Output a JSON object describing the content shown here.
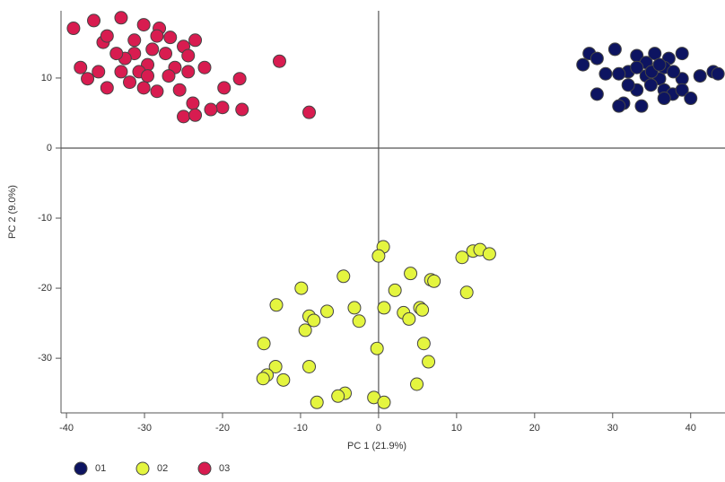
{
  "chart_data": {
    "type": "scatter",
    "xlabel": "PC 1 (21.9%)",
    "ylabel": "PC 2 (9.0%)",
    "xlim": [
      -40.7,
      44.4
    ],
    "ylim": [
      -37.8,
      19.6
    ],
    "xticks": [
      -40,
      -30,
      -20,
      -10,
      0,
      10,
      20,
      30,
      40
    ],
    "yticks": [
      -30,
      -20,
      -10,
      0,
      10
    ],
    "legend": "bottom-left",
    "series": [
      {
        "name": "01",
        "color": "#0d1461",
        "x": [
          27.0,
          30.3,
          28.0,
          26.2,
          33.1,
          34.3,
          35.4,
          37.2,
          38.9,
          36.6,
          32.0,
          30.8,
          29.1,
          34.3,
          36.0,
          38.9,
          41.2,
          42.9,
          43.5,
          28.0,
          31.4,
          33.1,
          34.9,
          36.6,
          37.7,
          38.9,
          40.0,
          30.8,
          33.7,
          36.6,
          35.0,
          37.8,
          33.1,
          32.0,
          36.0
        ],
        "y": [
          13.5,
          14.1,
          12.8,
          11.9,
          13.2,
          12.2,
          13.5,
          12.8,
          13.5,
          11.5,
          10.9,
          10.6,
          10.6,
          10.3,
          9.9,
          9.9,
          10.3,
          10.9,
          10.6,
          7.7,
          6.4,
          8.3,
          9.0,
          8.3,
          7.7,
          8.3,
          7.1,
          6.0,
          6.0,
          7.1,
          10.9,
          10.9,
          11.5,
          9.0,
          11.9
        ]
      },
      {
        "name": "02",
        "color": "#e4f53f",
        "x": [
          0.6,
          0,
          12.1,
          13.0,
          14.2,
          10.7,
          -4.5,
          4.1,
          6.7,
          7.1,
          2.1,
          11.3,
          -9.9,
          -13.1,
          -6.6,
          -8.9,
          -8.3,
          -3.1,
          0.7,
          3.2,
          3.9,
          5.3,
          5.6,
          -2.5,
          -9.4,
          -14.7,
          5.8,
          -0.2,
          6.4,
          -13.2,
          -8.9,
          -14.3,
          -14.8,
          -12.2,
          4.9,
          -4.3,
          -5.2,
          -0.6,
          0.7,
          -7.9
        ],
        "y": [
          -14.1,
          -15.4,
          -14.7,
          -14.5,
          -15.1,
          -15.6,
          -18.3,
          -17.9,
          -18.8,
          -19.0,
          -20.3,
          -20.6,
          -20.0,
          -22.4,
          -23.3,
          -24.0,
          -24.6,
          -22.8,
          -22.8,
          -23.5,
          -24.4,
          -22.8,
          -23.1,
          -24.7,
          -26.0,
          -27.9,
          -27.9,
          -28.6,
          -30.5,
          -31.2,
          -31.2,
          -32.4,
          -32.9,
          -33.1,
          -33.7,
          -35.0,
          -35.4,
          -35.6,
          -36.3,
          -36.3
        ]
      },
      {
        "name": "03",
        "color": "#d81c50",
        "x": [
          -39.1,
          -36.5,
          -33.0,
          -30.1,
          -28.1,
          -26.7,
          -23.5,
          -25.0,
          -35.3,
          -34.8,
          -31.3,
          -29.0,
          -27.3,
          -24.4,
          -22.3,
          -26.1,
          -29.6,
          -30.7,
          -33.0,
          -35.9,
          -38.2,
          -37.3,
          -34.8,
          -31.9,
          -30.1,
          -28.4,
          -26.9,
          -24.4,
          -19.8,
          -17.8,
          -20.0,
          -23.8,
          -25.0,
          -23.5,
          -21.5,
          -17.5,
          -12.7,
          -8.9,
          -31.3,
          -28.4,
          -32.5,
          -25.5,
          -29.6,
          -33.6
        ],
        "y": [
          17.1,
          18.2,
          18.6,
          17.6,
          17.1,
          15.8,
          15.4,
          14.5,
          15.1,
          16.0,
          15.4,
          14.1,
          13.5,
          13.2,
          11.5,
          11.5,
          11.9,
          10.9,
          10.9,
          10.9,
          11.5,
          9.9,
          8.6,
          9.4,
          8.6,
          8.1,
          10.3,
          10.9,
          8.6,
          9.9,
          5.8,
          6.4,
          4.5,
          4.7,
          5.5,
          5.5,
          12.4,
          5.1,
          13.5,
          16.0,
          12.8,
          8.3,
          10.3,
          13.5
        ]
      }
    ]
  }
}
